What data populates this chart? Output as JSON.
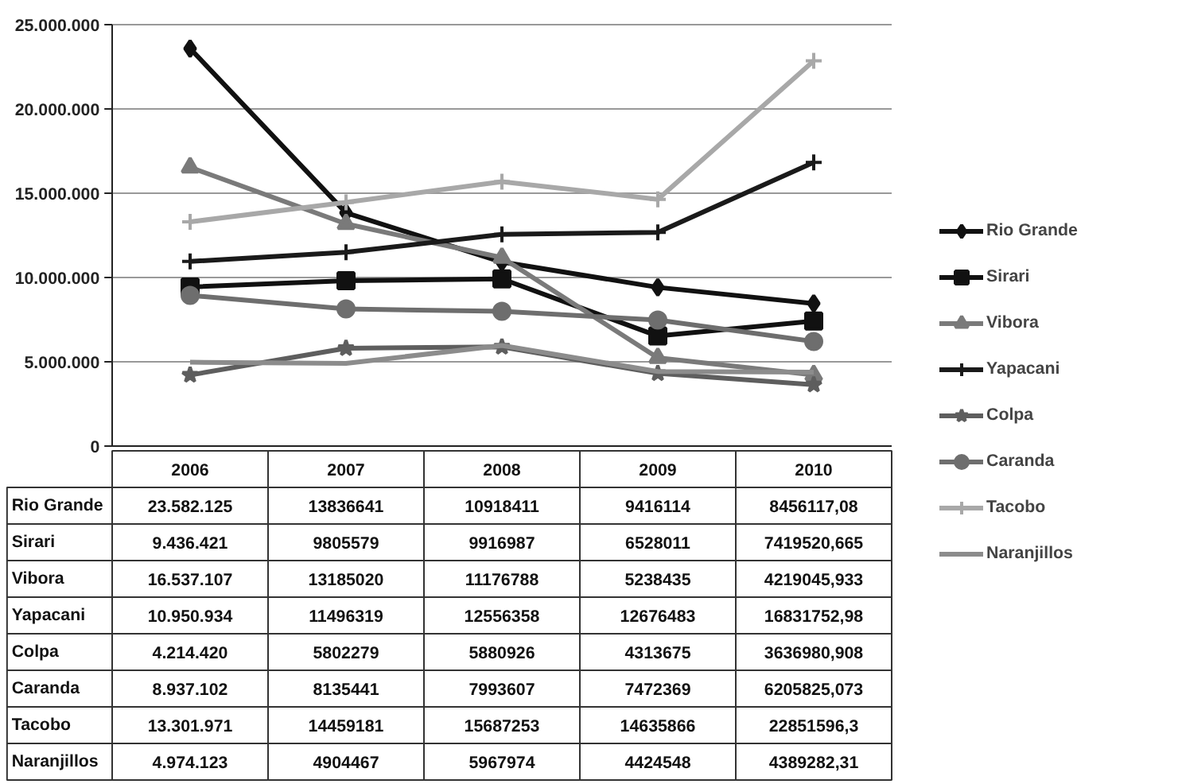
{
  "chart_data": {
    "type": "line",
    "categories": [
      "2006",
      "2007",
      "2008",
      "2009",
      "2010"
    ],
    "ylim": [
      0,
      25000000
    ],
    "yticks": [
      {
        "value": 0,
        "label": "0"
      },
      {
        "value": 5000000,
        "label": "5.000.000"
      },
      {
        "value": 10000000,
        "label": "10.000.000"
      },
      {
        "value": 15000000,
        "label": "15.000.000"
      },
      {
        "value": 20000000,
        "label": "20.000.000"
      },
      {
        "value": 25000000,
        "label": "25.000.000"
      }
    ],
    "grid": "y",
    "legend": "right",
    "tick_labels": "y",
    "series": [
      {
        "name": "Rio Grande",
        "color": "#111111",
        "marker": "diamond",
        "values": [
          23582125,
          13836641,
          10918411,
          9416114,
          8456117.08
        ],
        "value_labels": [
          "23.582.125",
          "13836641",
          "10918411",
          "9416114",
          "8456117,08"
        ]
      },
      {
        "name": "Sirari",
        "color": "#111111",
        "marker": "square",
        "values": [
          9436421,
          9805579,
          9916987,
          6528011,
          7419520.665
        ],
        "value_labels": [
          "9.436.421",
          "9805579",
          "9916987",
          "6528011",
          "7419520,665"
        ]
      },
      {
        "name": "Vibora",
        "color": "#7a7a7a",
        "marker": "triangle",
        "values": [
          16537107,
          13185020,
          11176788,
          5238435,
          4219045.933
        ],
        "value_labels": [
          "16.537.107",
          "13185020",
          "11176788",
          "5238435",
          "4219045,933"
        ]
      },
      {
        "name": "Yapacani",
        "color": "#1a1a1a",
        "marker": "cross",
        "values": [
          10950934,
          11496319,
          12556358,
          12676483,
          16831752.98
        ],
        "value_labels": [
          "10.950.934",
          "11496319",
          "12556358",
          "12676483",
          "16831752,98"
        ]
      },
      {
        "name": "Colpa",
        "color": "#5e5e5e",
        "marker": "star",
        "values": [
          4214420,
          5802279,
          5880926,
          4313675,
          3636980.908
        ],
        "value_labels": [
          "4.214.420",
          "5802279",
          "5880926",
          "4313675",
          "3636980,908"
        ]
      },
      {
        "name": "Caranda",
        "color": "#6e6e6e",
        "marker": "circle",
        "values": [
          8937102,
          8135441,
          7993607,
          7472369,
          6205825.073
        ],
        "value_labels": [
          "8.937.102",
          "8135441",
          "7993607",
          "7472369",
          "6205825,073"
        ]
      },
      {
        "name": "Tacobo",
        "color": "#a8a8a8",
        "marker": "cross",
        "values": [
          13301971,
          14459181,
          15687253,
          14635866,
          22851596.3
        ],
        "value_labels": [
          "13.301.971",
          "14459181",
          "15687253",
          "14635866",
          "22851596,3"
        ]
      },
      {
        "name": "Naranjillos",
        "color": "#8c8c8c",
        "marker": "none",
        "values": [
          4974123,
          4904467,
          5967974,
          4424548,
          4389282.31
        ],
        "value_labels": [
          "4.974.123",
          "4904467",
          "5967974",
          "4424548",
          "4389282,31"
        ]
      }
    ]
  }
}
